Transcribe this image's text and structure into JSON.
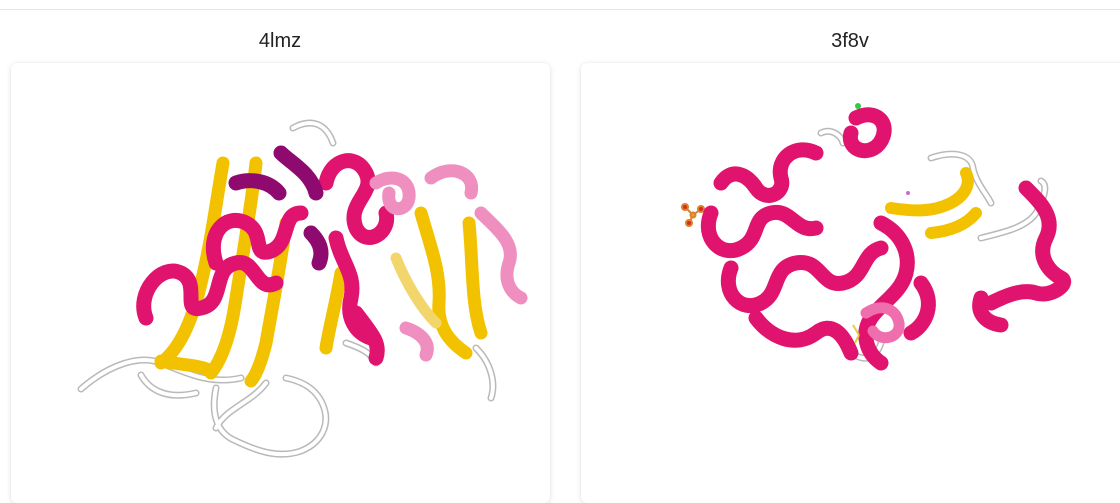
{
  "panels": [
    {
      "title": "4lmz"
    },
    {
      "title": "3f8v"
    }
  ],
  "colors": {
    "helix": "#e0136f",
    "helix_dark": "#8f0a6f",
    "helix_light": "#ef8fc0",
    "strand": "#f2c200",
    "strand_light": "#f3d66b",
    "coil": "#ffffff",
    "coil_edge": "#b9b9b9"
  },
  "icons": {
    "left": "protein-structure-4lmz-image",
    "right": "protein-structure-3f8v-image"
  }
}
